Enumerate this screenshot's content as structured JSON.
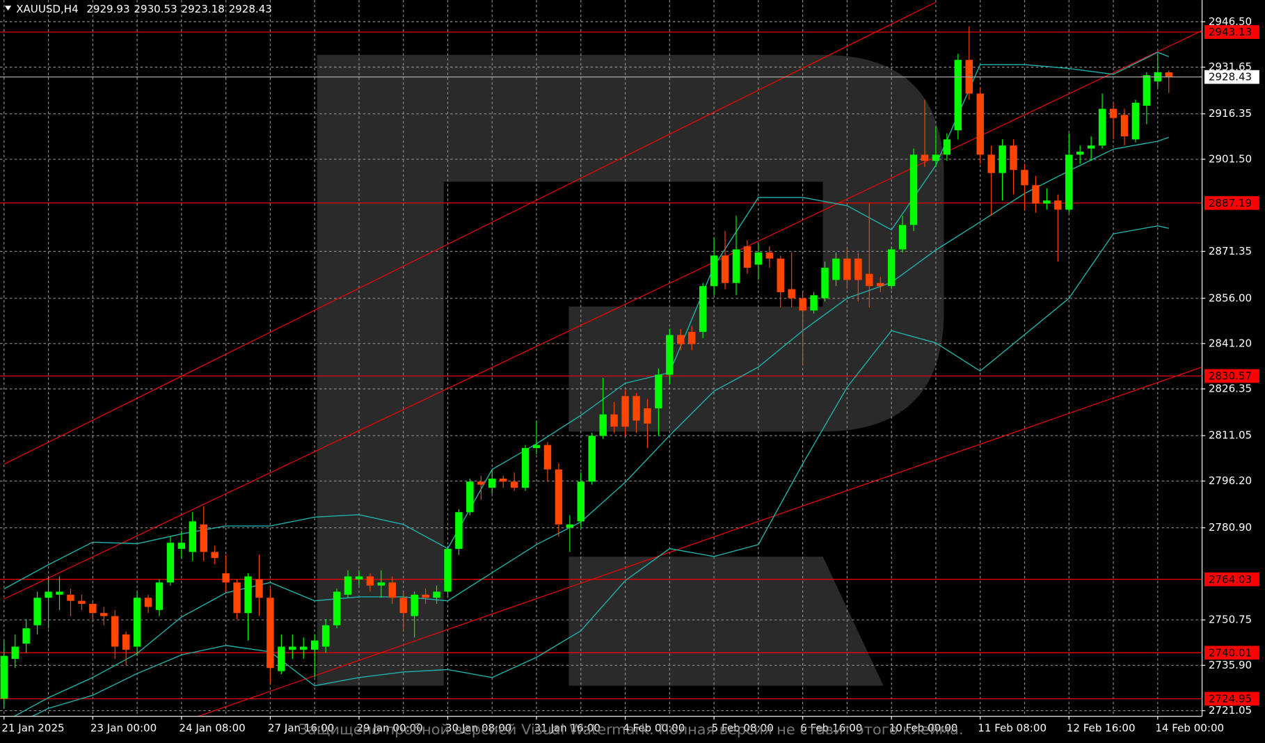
{
  "chart_data": {
    "type": "candlestick",
    "symbol": "XAUUSD,H4",
    "categories": [
      "21 Jan 2025",
      null,
      null,
      null,
      null,
      null,
      null,
      null,
      "23 Jan 00:00",
      null,
      null,
      null,
      null,
      null,
      null,
      null,
      "24 Jan 08:00",
      null,
      null,
      null,
      null,
      null,
      null,
      null,
      "27 Jan 16:00",
      null,
      null,
      null,
      null,
      null,
      null,
      null,
      "29 Jan 00:00",
      null,
      null,
      null,
      null,
      null,
      null,
      null,
      "30 Jan 08:00",
      null,
      null,
      null,
      null,
      null,
      null,
      null,
      "31 Jan 16:00",
      null,
      null,
      null,
      null,
      null,
      null,
      null,
      "4 Feb 00:00",
      null,
      null,
      null,
      null,
      null,
      null,
      null,
      "5 Feb 08:00",
      null,
      null,
      null,
      null,
      null,
      null,
      null,
      "6 Feb 16:00",
      null,
      null,
      null,
      null,
      null,
      null,
      null,
      "10 Feb 00:00",
      null,
      null,
      null,
      null,
      null,
      null,
      null,
      "11 Feb 08:00",
      null,
      null,
      null,
      null,
      null,
      null,
      null,
      "12 Feb 16:00",
      null,
      null,
      null,
      null,
      null,
      null,
      null,
      "14 Feb 00:00",
      null
    ],
    "open": [
      2725,
      2738,
      2743,
      2749,
      2758,
      2759,
      2759,
      2757,
      2756,
      2753,
      2752,
      2746,
      2742,
      2758,
      2754,
      2763,
      2774,
      2773,
      2782,
      2773,
      2766,
      2763,
      2753,
      2764,
      2758,
      2734,
      2741,
      2741,
      2741,
      2742,
      2749,
      2759,
      2764,
      2765,
      2762,
      2763,
      2758,
      2752,
      2759,
      2758,
      2760,
      2774,
      2786,
      2796,
      2794,
      2797,
      2796,
      2794,
      2807,
      2808,
      2800,
      2781,
      2783,
      2796,
      2811,
      2818,
      2824,
      2824,
      2820,
      2820,
      2831,
      2844,
      2845,
      2845,
      2860,
      2870,
      2861,
      2873,
      2867,
      2871,
      2869,
      2859,
      2856,
      2852,
      2856,
      2862,
      2869,
      2869,
      2864,
      2861,
      2860,
      2872,
      2880,
      2903,
      2901,
      2903,
      2911,
      2934,
      2923,
      2903,
      2897,
      2906,
      2898,
      2893,
      2887,
      2888,
      2885,
      2903,
      2905,
      2906,
      2918,
      2916,
      2908,
      2919,
      2927,
      2929.93
    ],
    "high": [
      2744,
      2746,
      2751,
      2760,
      2765,
      2765,
      2761,
      2759,
      2757,
      2755,
      2754,
      2747,
      2760,
      2759,
      2764,
      2778,
      2780,
      2786,
      2788,
      2775,
      2772,
      2764,
      2766,
      2772,
      2761,
      2746,
      2746,
      2745,
      2746,
      2751,
      2761,
      2767,
      2767,
      2766,
      2767,
      2765,
      2760,
      2760,
      2761,
      2762,
      2775,
      2787,
      2797,
      2798,
      2800,
      2798,
      2799,
      2808,
      2816,
      2809,
      2802,
      2785,
      2799,
      2812,
      2830,
      2822,
      2826,
      2825,
      2823,
      2833,
      2846,
      2846,
      2847,
      2861,
      2876,
      2878,
      2883,
      2875,
      2874,
      2873,
      2870,
      2871,
      2858,
      2858,
      2868,
      2871,
      2872,
      2871,
      2887,
      2863,
      2873,
      2883,
      2905,
      2921,
      2912,
      2910,
      2936,
      2945,
      2925,
      2906,
      2908,
      2908,
      2900,
      2896,
      2892,
      2890,
      2910,
      2906,
      2909,
      2923,
      2920,
      2918,
      2921,
      2930,
      2936,
      2930.53
    ],
    "low": [
      2722,
      2735,
      2740,
      2746,
      2748,
      2754,
      2752,
      2754,
      2751,
      2749,
      2738,
      2736,
      2739,
      2753,
      2752,
      2762,
      2771,
      2770,
      2770,
      2769,
      2760,
      2751,
      2744,
      2752,
      2730,
      2733,
      2738,
      2738,
      2732,
      2740,
      2748,
      2758,
      2762,
      2760,
      2758,
      2756,
      2747,
      2745,
      2756,
      2756,
      2758,
      2772,
      2785,
      2790,
      2792,
      2794,
      2793,
      2793,
      2805,
      2796,
      2778,
      2773,
      2781,
      2795,
      2810,
      2812,
      2811,
      2812,
      2807,
      2811,
      2828,
      2839,
      2839,
      2843,
      2857,
      2859,
      2857,
      2864,
      2862,
      2866,
      2853,
      2853,
      2834,
      2851,
      2855,
      2860,
      2859,
      2855,
      2853,
      2858,
      2859,
      2871,
      2878,
      2899,
      2899,
      2901,
      2908,
      2921,
      2900,
      2883,
      2888,
      2890,
      2885,
      2884,
      2885,
      2868,
      2884,
      2900,
      2901,
      2905,
      2908,
      2906,
      2907,
      2913,
      2925,
      2923.18
    ],
    "close": [
      2739,
      2742,
      2748,
      2758,
      2760,
      2760,
      2757,
      2756,
      2753,
      2752,
      2742,
      2741,
      2758,
      2755,
      2763,
      2776,
      2776,
      2783,
      2773,
      2771,
      2763,
      2753,
      2765,
      2758,
      2735,
      2742,
      2742,
      2742,
      2744,
      2749,
      2760,
      2765,
      2765,
      2762,
      2763,
      2758,
      2753,
      2759,
      2758,
      2760,
      2774,
      2786,
      2796,
      2795,
      2797,
      2796,
      2794,
      2807,
      2808,
      2800,
      2782,
      2782,
      2796,
      2811,
      2818,
      2814,
      2814,
      2816,
      2815,
      2831,
      2844,
      2841,
      2841,
      2860,
      2870,
      2861,
      2872,
      2866,
      2871,
      2869,
      2858,
      2856,
      2852,
      2857,
      2866,
      2869,
      2862,
      2862,
      2860,
      2860,
      2872,
      2880,
      2903,
      2901,
      2903,
      2908,
      2934,
      2923,
      2903,
      2897,
      2906,
      2898,
      2893,
      2887,
      2888,
      2885,
      2903,
      2904,
      2906,
      2918,
      2915,
      2909,
      2920,
      2929,
      2930,
      2928.43
    ],
    "up_color": "#00ff00",
    "down_color": "#ff4500",
    "ylim": [
      2719.2,
      2953.6
    ],
    "yticks": [
      {
        "value": 2946.5,
        "label": "2946.50"
      },
      {
        "value": 2931.65,
        "label": "2931.65"
      },
      {
        "value": 2916.35,
        "label": "2916.35"
      },
      {
        "value": 2901.5,
        "label": "2901.50"
      },
      {
        "value": 2871.35,
        "label": "2871.35"
      },
      {
        "value": 2856,
        "label": "2856.00"
      },
      {
        "value": 2841.2,
        "label": "2841.20"
      },
      {
        "value": 2826.35,
        "label": "2826.35"
      },
      {
        "value": 2811.05,
        "label": "2811.05"
      },
      {
        "value": 2796.2,
        "label": "2796.20"
      },
      {
        "value": 2780.9,
        "label": "2780.90"
      },
      {
        "value": 2750.75,
        "label": "2750.75"
      },
      {
        "value": 2735.9,
        "label": "2735.90"
      },
      {
        "value": 2721.05,
        "label": "2721.05"
      }
    ],
    "grid": true,
    "levels": {
      "color": "#ff0000",
      "values": [
        2943.13,
        2887.19,
        2830.57,
        2764.03,
        2740.01,
        2724.95
      ]
    },
    "trendlines": {
      "color": "#ff0000",
      "lines": [
        {
          "x": [
            0,
            84
          ],
          "y": [
            2801.7,
            2952.9
          ]
        },
        {
          "x": [
            0,
            108
          ],
          "y": [
            2757.6,
            2943.6
          ]
        },
        {
          "x": [
            17.5,
            108
          ],
          "y": [
            2719.2,
            2833.5
          ]
        }
      ]
    },
    "bollinger": {
      "color": "#20b2aa",
      "x": [
        0,
        4,
        8,
        12,
        16,
        20,
        24,
        28,
        32,
        36,
        40,
        44,
        48,
        52,
        56,
        60,
        64,
        68,
        72,
        76,
        80,
        84,
        88,
        92,
        96,
        100,
        104,
        105
      ],
      "series": [
        {
          "values": [
            2760.9,
            2768.8,
            2776.2,
            2775.7,
            2778.9,
            2781.5,
            2781.5,
            2784.4,
            2785.2,
            2782.0,
            2774.1,
            2800.0,
            2808.4,
            2817.7,
            2828.2,
            2831.7,
            2866.5,
            2889.0,
            2889.0,
            2886.3,
            2878.4,
            2899.5,
            2932.5,
            2932.5,
            2931.2,
            2929.3,
            2936.5,
            2935.1
          ]
        },
        {
          "values": [
            2717.4,
            2725.3,
            2731.9,
            2739.8,
            2751.7,
            2759.6,
            2763.0,
            2757.0,
            2758.3,
            2758.3,
            2757.0,
            2766.2,
            2775.4,
            2782.8,
            2795.8,
            2811.1,
            2825.6,
            2833.5,
            2845.4,
            2856.0,
            2861.2,
            2871.8,
            2881.0,
            2890.3,
            2897.7,
            2904.8,
            2907.4,
            2908.7
          ]
        },
        {
          "values": [
            2714.7,
            2721.8,
            2726.1,
            2733.2,
            2739.3,
            2742.4,
            2740.3,
            2729.2,
            2731.9,
            2733.7,
            2734.5,
            2731.9,
            2738.5,
            2747.2,
            2763.6,
            2774.1,
            2771.5,
            2775.4,
            2801.8,
            2826.9,
            2845.4,
            2841.4,
            2832.2,
            2844.1,
            2856.0,
            2877.1,
            2879.7,
            2878.9
          ]
        }
      ]
    },
    "watermark": "Защищено пробной версией Visual Watermark. Полная версия не ставит этого клейма."
  }
}
